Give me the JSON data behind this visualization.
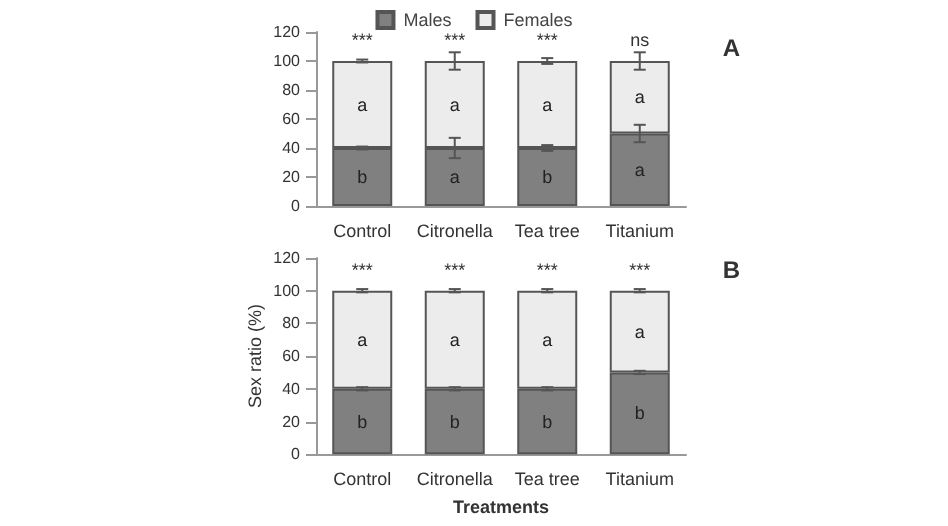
{
  "chart_data": [
    {
      "type": "bar",
      "stacked": true,
      "categories": [
        "Control",
        "Citronella",
        "Tea tree",
        "Titanium"
      ],
      "ylim": [
        0,
        120
      ],
      "yticks": [
        0,
        20,
        40,
        60,
        80,
        100,
        120
      ],
      "grid": false,
      "legend": "top",
      "series": [
        {
          "name": "Males",
          "color": "#808080",
          "values": [
            40,
            40,
            40,
            50
          ],
          "errors": [
            1,
            7,
            2,
            6
          ],
          "value_labels": [
            "b",
            "a",
            "b",
            "a"
          ]
        },
        {
          "name": "Females",
          "color": "#ececec",
          "values": [
            60,
            60,
            60,
            50
          ],
          "errors": [
            1,
            6,
            2,
            6
          ],
          "value_labels": [
            "a",
            "a",
            "a",
            "a"
          ]
        }
      ],
      "annotations": [
        "A",
        {
          "text": "***",
          "x": "Control",
          "y": 100
        },
        {
          "text": "***",
          "x": "Citronella",
          "y": 100
        },
        {
          "text": "***",
          "x": "Tea tree",
          "y": 100
        },
        {
          "text": "ns",
          "x": "Titanium",
          "y": 100
        }
      ]
    },
    {
      "type": "bar",
      "stacked": true,
      "categories": [
        "Control",
        "Citronella",
        "Tea tree",
        "Titanium"
      ],
      "ylim": [
        0,
        120
      ],
      "yticks": [
        0,
        20,
        40,
        60,
        80,
        100,
        120
      ],
      "grid": false,
      "xlabel": "Treatments",
      "ylabel": "Sex ratio (%)",
      "series": [
        {
          "color": "#808080",
          "values": [
            40,
            40,
            40,
            50
          ],
          "errors": [
            1,
            1,
            1,
            1
          ],
          "value_labels": [
            "b",
            "b",
            "b",
            "b"
          ]
        },
        {
          "color": "#ececec",
          "values": [
            60,
            60,
            60,
            50
          ],
          "errors": [
            1,
            1,
            1,
            1
          ],
          "value_labels": [
            "a",
            "a",
            "a",
            "a"
          ]
        }
      ],
      "annotations": [
        "B",
        {
          "text": "***",
          "x": "Control",
          "y": 100
        },
        {
          "text": "***",
          "x": "Citronella",
          "y": 100
        },
        {
          "text": "***",
          "x": "Tea tree",
          "y": 100
        },
        {
          "text": "***",
          "x": "Titanium",
          "y": 100
        }
      ]
    }
  ]
}
